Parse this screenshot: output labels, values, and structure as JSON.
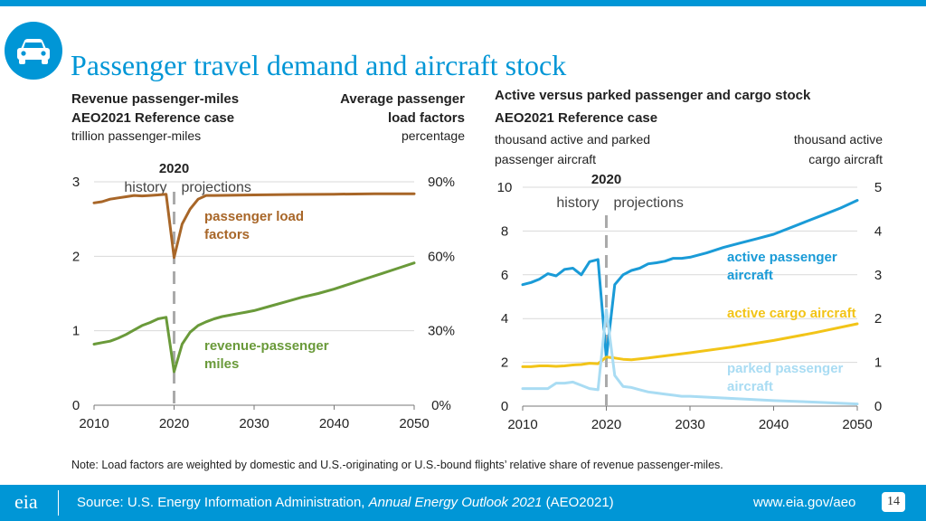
{
  "title": "Passenger travel demand and aircraft stock",
  "icon": "car-icon",
  "left": {
    "heading1": "Revenue passenger-miles",
    "heading2": "AEO2021 Reference case",
    "unit": "trillion passenger-miles",
    "right_heading1": "Average passenger",
    "right_heading2": "load factors",
    "right_unit": "percentage",
    "year_label": "2020",
    "history": "history",
    "projections": "projections",
    "label_load_1": "passenger load",
    "label_load_2": "factors",
    "label_rpm_1": "revenue-passenger",
    "label_rpm_2": "miles",
    "y_left_ticks": [
      "0",
      "1",
      "2",
      "3"
    ],
    "y_right_ticks": [
      "0%",
      "30%",
      "60%",
      "90%"
    ],
    "x_ticks": [
      "2010",
      "2020",
      "2030",
      "2040",
      "2050"
    ]
  },
  "right": {
    "heading1": "Active versus parked passenger and cargo stock",
    "heading2": "AEO2021 Reference case",
    "unit_left_1": "thousand active and parked",
    "unit_left_2": "passenger aircraft",
    "unit_right_1": "thousand active",
    "unit_right_2": "cargo aircraft",
    "year_label": "2020",
    "history": "history",
    "projections": "projections",
    "label_active_pass_1": "active passenger",
    "label_active_pass_2": "aircraft",
    "label_cargo": "active cargo aircraft",
    "label_parked_1": "parked passenger",
    "label_parked_2": "aircraft",
    "y_left_ticks": [
      "0",
      "2",
      "4",
      "6",
      "8",
      "10"
    ],
    "y_right_ticks": [
      "0",
      "1",
      "2",
      "3",
      "4",
      "5"
    ],
    "x_ticks": [
      "2010",
      "2020",
      "2030",
      "2040",
      "2050"
    ]
  },
  "colors": {
    "brand": "#0096d6",
    "load_factor": "#a86628",
    "rpm": "#6a9a3a",
    "active_passenger": "#1a9bd7",
    "cargo": "#f2c418",
    "parked": "#a9dcf3"
  },
  "chart_data": [
    {
      "type": "line",
      "title": "Revenue passenger-miles / Average passenger load factors",
      "xlabel": "",
      "ylabel": "trillion passenger-miles",
      "ylabel_right": "percentage",
      "xlim": [
        2010,
        2050
      ],
      "ylim": [
        0,
        3
      ],
      "ylim_right": [
        0,
        90
      ],
      "series": [
        {
          "name": "passenger load factors",
          "axis": "right",
          "x": [
            2010,
            2011,
            2012,
            2013,
            2014,
            2015,
            2016,
            2017,
            2018,
            2019,
            2020,
            2021,
            2022,
            2023,
            2024,
            2025,
            2030,
            2035,
            2040,
            2045,
            2050
          ],
          "values": [
            81.5,
            82,
            83,
            83.5,
            84,
            84.5,
            84.3,
            84.5,
            84.7,
            85,
            59.5,
            73,
            79,
            83,
            84.5,
            84.5,
            84.7,
            84.9,
            85,
            85.2,
            85.2
          ]
        },
        {
          "name": "revenue-passenger miles",
          "axis": "left",
          "x": [
            2010,
            2011,
            2012,
            2013,
            2014,
            2015,
            2016,
            2017,
            2018,
            2019,
            2020,
            2021,
            2022,
            2023,
            2024,
            2025,
            2026,
            2027,
            2028,
            2029,
            2030,
            2032,
            2034,
            2036,
            2038,
            2040,
            2042,
            2044,
            2046,
            2048,
            2050
          ],
          "values": [
            0.82,
            0.84,
            0.86,
            0.9,
            0.95,
            1.01,
            1.07,
            1.11,
            1.16,
            1.18,
            0.45,
            0.82,
            0.98,
            1.07,
            1.12,
            1.16,
            1.19,
            1.21,
            1.23,
            1.25,
            1.27,
            1.33,
            1.39,
            1.45,
            1.5,
            1.56,
            1.63,
            1.7,
            1.77,
            1.84,
            1.91
          ]
        }
      ]
    },
    {
      "type": "line",
      "title": "Active versus parked passenger and cargo stock",
      "xlabel": "",
      "ylabel": "thousand active and parked passenger aircraft",
      "ylabel_right": "thousand active cargo aircraft",
      "xlim": [
        2010,
        2050
      ],
      "ylim": [
        0,
        10
      ],
      "ylim_right": [
        0,
        5
      ],
      "series": [
        {
          "name": "active passenger aircraft",
          "axis": "left",
          "x": [
            2010,
            2011,
            2012,
            2013,
            2014,
            2015,
            2016,
            2017,
            2018,
            2019,
            2020,
            2021,
            2022,
            2023,
            2024,
            2025,
            2026,
            2027,
            2028,
            2029,
            2030,
            2032,
            2034,
            2036,
            2038,
            2040,
            2042,
            2044,
            2046,
            2048,
            2050
          ],
          "values": [
            5.55,
            5.65,
            5.8,
            6.05,
            5.95,
            6.25,
            6.3,
            6.0,
            6.6,
            6.7,
            2.2,
            5.55,
            6.0,
            6.2,
            6.3,
            6.5,
            6.55,
            6.62,
            6.75,
            6.75,
            6.8,
            7.0,
            7.25,
            7.45,
            7.65,
            7.85,
            8.15,
            8.45,
            8.75,
            9.05,
            9.4
          ]
        },
        {
          "name": "active cargo aircraft",
          "axis": "right",
          "x": [
            2010,
            2011,
            2012,
            2013,
            2014,
            2015,
            2016,
            2017,
            2018,
            2019,
            2020,
            2021,
            2022,
            2023,
            2024,
            2025,
            2030,
            2035,
            2040,
            2045,
            2050
          ],
          "values": [
            0.9,
            0.9,
            0.92,
            0.92,
            0.91,
            0.92,
            0.94,
            0.95,
            0.98,
            0.97,
            1.12,
            1.1,
            1.07,
            1.06,
            1.08,
            1.1,
            1.22,
            1.35,
            1.5,
            1.68,
            1.88
          ]
        },
        {
          "name": "parked passenger aircraft",
          "axis": "left",
          "x": [
            2010,
            2011,
            2012,
            2013,
            2014,
            2015,
            2016,
            2017,
            2018,
            2019,
            2020,
            2021,
            2022,
            2023,
            2024,
            2025,
            2026,
            2027,
            2028,
            2029,
            2030,
            2035,
            2040,
            2045,
            2050
          ],
          "values": [
            0.8,
            0.8,
            0.8,
            0.8,
            1.05,
            1.05,
            1.1,
            0.95,
            0.8,
            0.75,
            4.4,
            1.4,
            0.9,
            0.85,
            0.75,
            0.65,
            0.6,
            0.55,
            0.5,
            0.45,
            0.45,
            0.35,
            0.25,
            0.18,
            0.1
          ]
        }
      ]
    }
  ]
}
